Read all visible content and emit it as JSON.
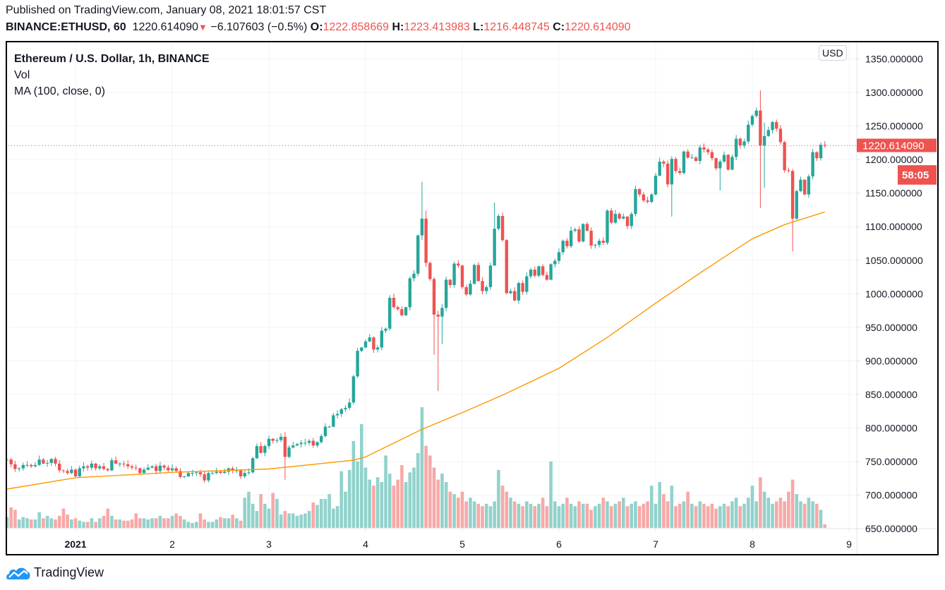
{
  "header": {
    "published": "Published on TradingView.com, January 08, 2021 18:01:57 CST",
    "symbol": "BINANCE:ETHUSD, 60",
    "last": "1220.614090",
    "change": "−6.107603 (−0.5%)",
    "o_label": "O:",
    "o": "1222.858669",
    "h_label": "H:",
    "h": "1223.413983",
    "l_label": "L:",
    "l": "1216.448745",
    "c_label": "C:",
    "c": "1220.614090"
  },
  "legend": {
    "title": "Ethereum / U.S. Dollar, 1h, BINANCE",
    "vol": "Vol",
    "ma": "MA (100, close, 0)"
  },
  "currency": "USD",
  "price_label": "1220.614090",
  "countdown": "58:05",
  "brand": "TradingView",
  "colors": {
    "up": "#26a69a",
    "down": "#ef5350",
    "ma": "#ff9800",
    "vol_up": "#92d2cc",
    "vol_down": "#f7a9a7"
  },
  "chart_data": {
    "type": "candlestick",
    "interval": "1h",
    "last_open": "2021-01-08 18:00",
    "current_price": 1220.61409,
    "ylim": [
      645,
      1360
    ],
    "y_ticks": [
      "650.000000",
      "700.000000",
      "750.000000",
      "800.000000",
      "850.000000",
      "900.000000",
      "950.000000",
      "1000.000000",
      "1050.000000",
      "1100.000000",
      "1150.000000",
      "1200.000000",
      "1250.000000",
      "1300.000000",
      "1350.000000"
    ],
    "x_ticks": [
      {
        "label": "2021",
        "t": "2021-01-01 00:00",
        "bold": true
      },
      {
        "label": "2",
        "t": "2021-01-02 00:00"
      },
      {
        "label": "3",
        "t": "2021-01-03 00:00"
      },
      {
        "label": "4",
        "t": "2021-01-04 00:00"
      },
      {
        "label": "5",
        "t": "2021-01-05 00:00"
      },
      {
        "label": "6",
        "t": "2021-01-06 00:00"
      },
      {
        "label": "7",
        "t": "2021-01-07 00:00"
      },
      {
        "label": "8",
        "t": "2021-01-08 00:00"
      },
      {
        "label": "9",
        "t": "2021-01-09 00:00"
      }
    ],
    "closes": [
      753,
      746,
      739,
      740,
      745,
      745,
      743,
      745,
      753,
      747,
      748,
      754,
      747,
      737,
      736,
      733,
      738,
      728,
      740,
      743,
      741,
      747,
      740,
      743,
      739,
      737,
      752,
      747,
      747,
      746,
      743,
      741,
      740,
      733,
      738,
      741,
      743,
      736,
      744,
      741,
      737,
      740,
      736,
      727,
      728,
      733,
      733,
      734,
      731,
      722,
      733,
      733,
      735,
      733,
      735,
      740,
      737,
      737,
      728,
      733,
      734,
      755,
      773,
      763,
      773,
      784,
      781,
      782,
      787,
      757,
      771,
      774,
      776,
      778,
      778,
      781,
      774,
      779,
      788,
      802,
      802,
      819,
      821,
      828,
      830,
      838,
      877,
      915,
      920,
      929,
      935,
      917,
      920,
      945,
      948,
      994,
      980,
      977,
      968,
      980,
      1023,
      1030,
      1087,
      1112,
      1046,
      1022,
      969,
      966,
      979,
      1021,
      1013,
      1045,
      1042,
      1010,
      999,
      1015,
      1043,
      1019,
      1004,
      1010,
      1042,
      1097,
      1116,
      1080,
      1001,
      1004,
      990,
      1016,
      1003,
      1026,
      1036,
      1027,
      1041,
      1028,
      1021,
      1044,
      1049,
      1062,
      1079,
      1071,
      1094,
      1096,
      1078,
      1104,
      1094,
      1072,
      1073,
      1079,
      1076,
      1124,
      1106,
      1119,
      1112,
      1115,
      1101,
      1119,
      1156,
      1148,
      1139,
      1137,
      1148,
      1176,
      1197,
      1194,
      1163,
      1201,
      1183,
      1180,
      1212,
      1203,
      1203,
      1198,
      1218,
      1215,
      1211,
      1202,
      1187,
      1197,
      1207,
      1185,
      1204,
      1231,
      1221,
      1227,
      1252,
      1265,
      1273,
      1221,
      1235,
      1244,
      1256,
      1246,
      1226,
      1184,
      1183,
      1112,
      1153,
      1170,
      1148,
      1175,
      1211,
      1202,
      1222,
      1220.61
    ],
    "wicks": [
      {
        "i": 69,
        "high": 794,
        "low": 723
      },
      {
        "i": 103,
        "high": 1167,
        "low": 1080
      },
      {
        "i": 104,
        "high": 1124,
        "low": 1040
      },
      {
        "i": 106,
        "high": 1025,
        "low": 909
      },
      {
        "i": 107,
        "high": 975,
        "low": 855
      },
      {
        "i": 108,
        "high": 985,
        "low": 925
      },
      {
        "i": 121,
        "high": 1136,
        "low": 1085
      },
      {
        "i": 165,
        "high": 1205,
        "low": 1115
      },
      {
        "i": 177,
        "high": 1200,
        "low": 1154
      },
      {
        "i": 187,
        "high": 1303,
        "low": 1128
      },
      {
        "i": 188,
        "high": 1255,
        "low": 1158
      },
      {
        "i": 195,
        "high": 1186,
        "low": 1063
      }
    ],
    "volume": [
      9,
      17,
      15,
      7,
      9,
      8,
      7,
      7,
      13,
      8,
      10,
      8,
      7,
      10,
      16,
      11,
      7,
      8,
      6,
      5,
      5,
      8,
      5,
      8,
      10,
      16,
      10,
      7,
      7,
      6,
      6,
      7,
      12,
      8,
      8,
      7,
      8,
      8,
      10,
      8,
      8,
      10,
      12,
      10,
      7,
      5,
      4,
      5,
      12,
      7,
      5,
      5,
      7,
      9,
      8,
      8,
      11,
      8,
      6,
      25,
      30,
      20,
      14,
      28,
      20,
      16,
      29,
      24,
      11,
      14,
      12,
      12,
      10,
      11,
      12,
      14,
      21,
      19,
      24,
      24,
      28,
      16,
      18,
      47,
      30,
      48,
      72,
      55,
      86,
      50,
      40,
      35,
      42,
      38,
      60,
      45,
      35,
      40,
      52,
      38,
      46,
      50,
      62,
      100,
      68,
      60,
      50,
      40,
      45,
      38,
      30,
      28,
      25,
      30,
      22,
      25,
      22,
      20,
      18,
      20,
      18,
      22,
      48,
      35,
      30,
      25,
      22,
      20,
      18,
      22,
      20,
      18,
      20,
      25,
      18,
      55,
      22,
      18,
      20,
      25,
      20,
      18,
      22,
      20,
      20,
      15,
      18,
      20,
      25,
      22,
      18,
      20,
      22,
      25,
      18,
      20,
      22,
      18,
      20,
      22,
      35,
      20,
      38,
      28,
      22,
      35,
      18,
      20,
      22,
      30,
      20,
      18,
      22,
      20,
      18,
      20,
      16,
      18,
      20,
      18,
      22,
      25,
      18,
      20,
      25,
      35,
      22,
      42,
      30,
      25,
      20,
      22,
      25,
      22,
      30,
      40,
      28,
      22,
      20,
      25,
      22,
      20,
      15,
      3
    ],
    "ma_100": [
      {
        "t": "2020-12-31 07:00",
        "v": 709
      },
      {
        "t": "2021-01-01 00:00",
        "v": 726
      },
      {
        "t": "2021-01-02 00:00",
        "v": 734
      },
      {
        "t": "2021-01-03 00:00",
        "v": 739
      },
      {
        "t": "2021-01-03 21:00",
        "v": 752
      },
      {
        "t": "2021-01-04 00:00",
        "v": 757
      },
      {
        "t": "2021-01-04 14:00",
        "v": 798
      },
      {
        "t": "2021-01-05 00:00",
        "v": 823
      },
      {
        "t": "2021-01-05 10:00",
        "v": 849
      },
      {
        "t": "2021-01-06 00:00",
        "v": 889
      },
      {
        "t": "2021-01-06 12:00",
        "v": 935
      },
      {
        "t": "2021-01-07 00:00",
        "v": 986
      },
      {
        "t": "2021-01-07 12:00",
        "v": 1035
      },
      {
        "t": "2021-01-08 00:00",
        "v": 1082
      },
      {
        "t": "2021-01-08 08:00",
        "v": 1103
      },
      {
        "t": "2021-01-08 18:00",
        "v": 1122
      }
    ]
  }
}
